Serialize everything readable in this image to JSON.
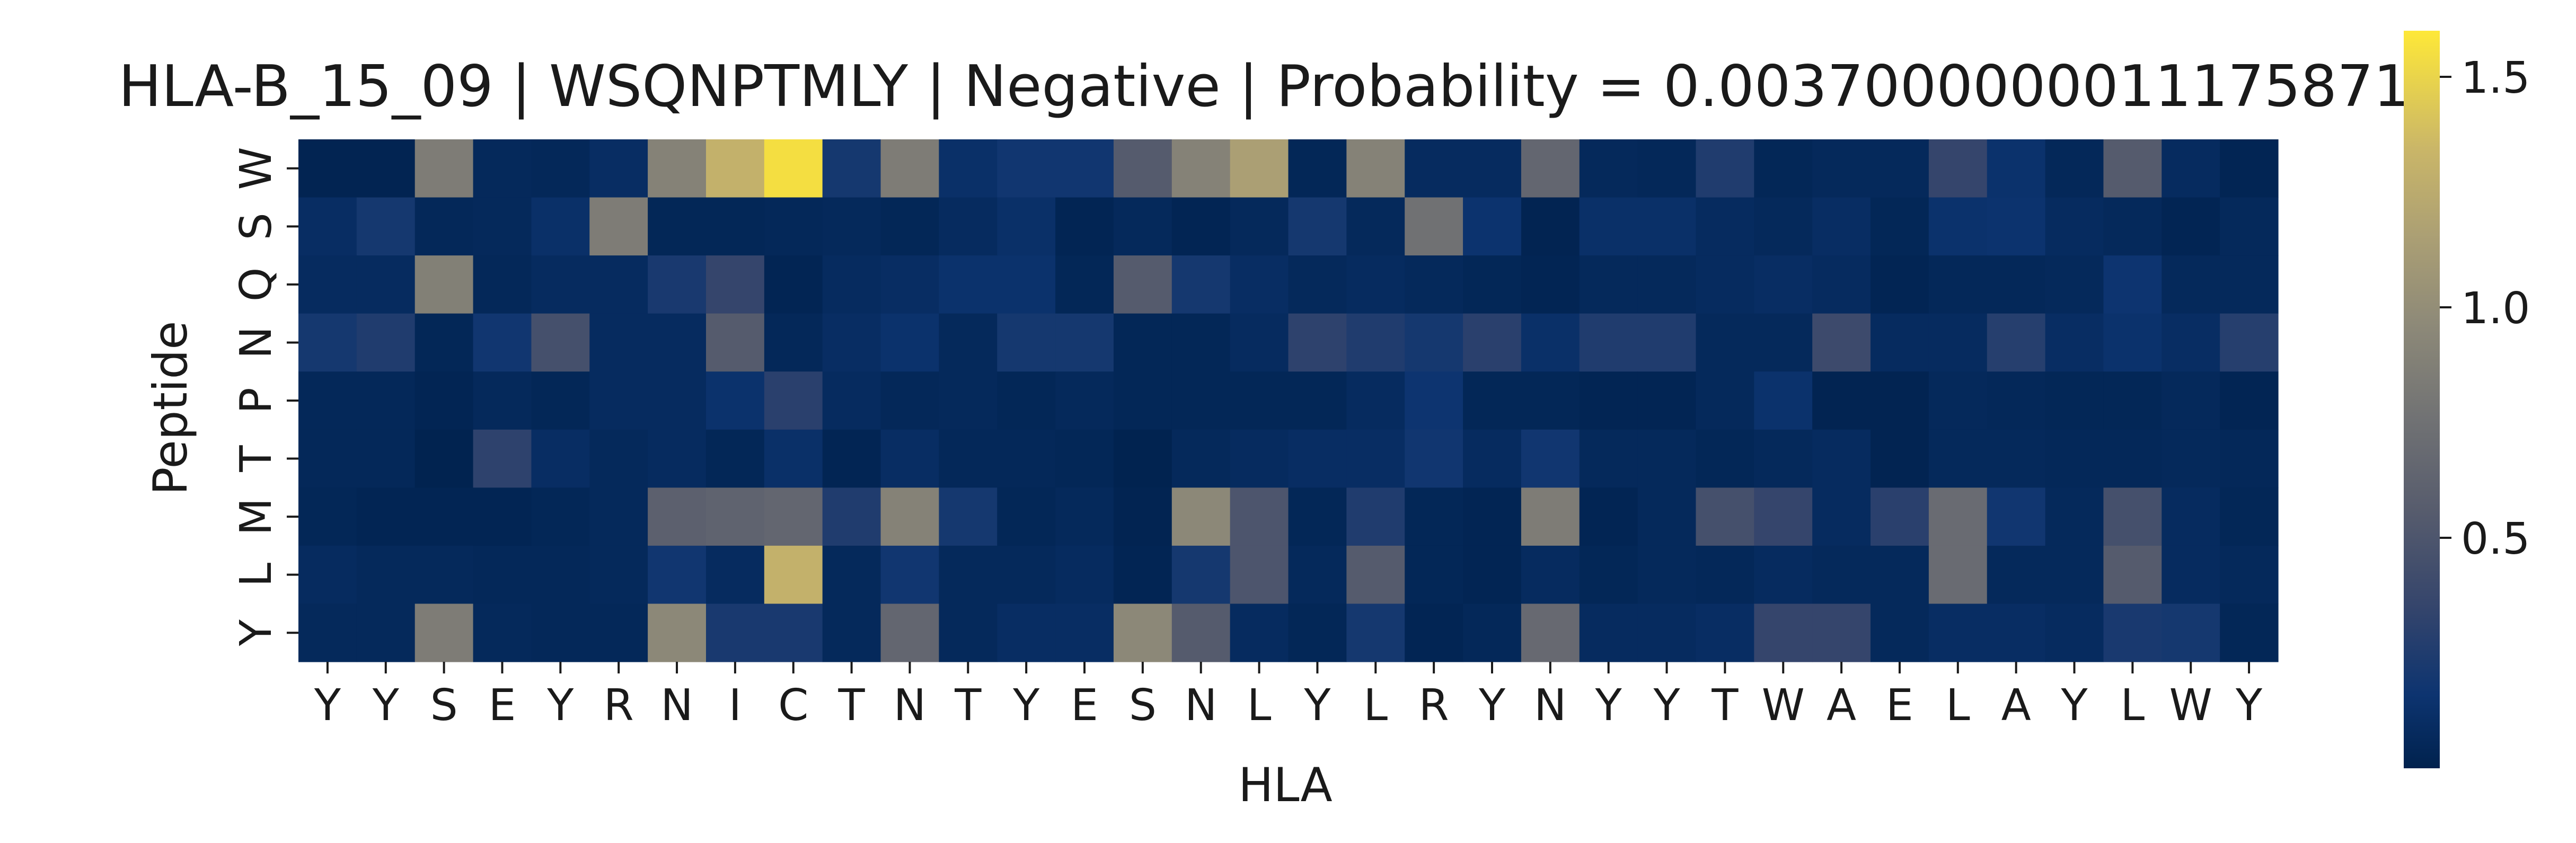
{
  "chart_data": {
    "type": "heatmap",
    "title": "HLA-B_15_09 | WSQNPTMLY | Negative | Probability = 0.0037000000011175871",
    "xlabel": "HLA",
    "ylabel": "Peptide",
    "x_categories": [
      "Y",
      "Y",
      "S",
      "E",
      "Y",
      "R",
      "N",
      "I",
      "C",
      "T",
      "N",
      "T",
      "Y",
      "E",
      "S",
      "N",
      "L",
      "Y",
      "L",
      "R",
      "Y",
      "N",
      "Y",
      "Y",
      "T",
      "W",
      "A",
      "E",
      "L",
      "A",
      "Y",
      "L",
      "W",
      "Y"
    ],
    "y_categories": [
      "W",
      "S",
      "Q",
      "N",
      "P",
      "T",
      "M",
      "L",
      "Y"
    ],
    "values": [
      [
        0.02,
        0.02,
        0.85,
        0.06,
        0.05,
        0.1,
        0.9,
        1.3,
        1.55,
        0.2,
        0.85,
        0.12,
        0.18,
        0.18,
        0.55,
        0.9,
        1.15,
        0.04,
        0.9,
        0.08,
        0.08,
        0.65,
        0.06,
        0.05,
        0.25,
        0.04,
        0.06,
        0.06,
        0.35,
        0.14,
        0.05,
        0.55,
        0.08,
        0.03
      ],
      [
        0.1,
        0.2,
        0.05,
        0.06,
        0.12,
        0.85,
        0.04,
        0.04,
        0.05,
        0.06,
        0.04,
        0.08,
        0.12,
        0.03,
        0.06,
        0.03,
        0.06,
        0.2,
        0.06,
        0.75,
        0.15,
        0.02,
        0.12,
        0.12,
        0.08,
        0.06,
        0.1,
        0.04,
        0.14,
        0.15,
        0.08,
        0.06,
        0.03,
        0.06
      ],
      [
        0.08,
        0.08,
        0.88,
        0.05,
        0.08,
        0.08,
        0.22,
        0.35,
        0.03,
        0.08,
        0.1,
        0.14,
        0.14,
        0.04,
        0.55,
        0.2,
        0.1,
        0.06,
        0.08,
        0.06,
        0.04,
        0.03,
        0.06,
        0.06,
        0.08,
        0.1,
        0.08,
        0.03,
        0.05,
        0.05,
        0.06,
        0.16,
        0.06,
        0.06
      ],
      [
        0.2,
        0.25,
        0.04,
        0.18,
        0.45,
        0.08,
        0.08,
        0.55,
        0.05,
        0.1,
        0.14,
        0.06,
        0.2,
        0.2,
        0.04,
        0.04,
        0.08,
        0.32,
        0.25,
        0.2,
        0.3,
        0.12,
        0.25,
        0.25,
        0.06,
        0.06,
        0.4,
        0.08,
        0.08,
        0.28,
        0.1,
        0.14,
        0.1,
        0.28
      ],
      [
        0.05,
        0.05,
        0.03,
        0.06,
        0.04,
        0.08,
        0.08,
        0.14,
        0.3,
        0.08,
        0.05,
        0.06,
        0.04,
        0.06,
        0.04,
        0.04,
        0.04,
        0.04,
        0.08,
        0.16,
        0.04,
        0.04,
        0.03,
        0.03,
        0.06,
        0.14,
        0.02,
        0.02,
        0.06,
        0.05,
        0.04,
        0.04,
        0.06,
        0.03
      ],
      [
        0.05,
        0.05,
        0.01,
        0.32,
        0.1,
        0.06,
        0.08,
        0.04,
        0.12,
        0.03,
        0.1,
        0.05,
        0.05,
        0.04,
        0.01,
        0.06,
        0.08,
        0.1,
        0.1,
        0.18,
        0.08,
        0.18,
        0.06,
        0.06,
        0.04,
        0.06,
        0.08,
        0.02,
        0.06,
        0.06,
        0.05,
        0.05,
        0.06,
        0.05
      ],
      [
        0.04,
        0.03,
        0.03,
        0.03,
        0.04,
        0.06,
        0.6,
        0.62,
        0.65,
        0.25,
        0.9,
        0.2,
        0.04,
        0.06,
        0.02,
        0.95,
        0.5,
        0.04,
        0.25,
        0.04,
        0.03,
        0.85,
        0.03,
        0.06,
        0.45,
        0.35,
        0.08,
        0.3,
        0.7,
        0.18,
        0.06,
        0.45,
        0.08,
        0.04
      ],
      [
        0.08,
        0.06,
        0.06,
        0.05,
        0.05,
        0.06,
        0.18,
        0.08,
        1.3,
        0.06,
        0.18,
        0.06,
        0.06,
        0.08,
        0.03,
        0.2,
        0.5,
        0.06,
        0.55,
        0.04,
        0.03,
        0.08,
        0.04,
        0.06,
        0.05,
        0.08,
        0.06,
        0.06,
        0.7,
        0.06,
        0.06,
        0.55,
        0.08,
        0.06
      ],
      [
        0.06,
        0.06,
        0.85,
        0.06,
        0.05,
        0.05,
        0.95,
        0.22,
        0.22,
        0.06,
        0.65,
        0.06,
        0.1,
        0.1,
        0.95,
        0.55,
        0.08,
        0.04,
        0.2,
        0.03,
        0.05,
        0.68,
        0.08,
        0.08,
        0.1,
        0.35,
        0.35,
        0.06,
        0.1,
        0.1,
        0.08,
        0.22,
        0.2,
        0.04
      ]
    ],
    "vmin": 0.0,
    "vmax": 1.6,
    "colormap": "cividis",
    "colorbar": {
      "ticks": [
        0.5,
        1.0,
        1.5
      ],
      "tick_labels": [
        "0.5",
        "1.0",
        "1.5"
      ]
    },
    "grid": false,
    "legend": "colorbar-right"
  }
}
